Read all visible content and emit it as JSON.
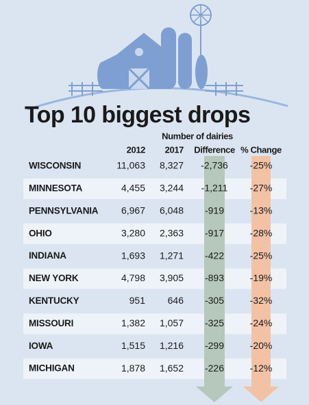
{
  "title": "Top 10 biggest drops",
  "table": {
    "group_header": "Number of dairies",
    "columns": [
      "2012",
      "2017",
      "Difference",
      "% Change"
    ],
    "rows": [
      [
        "WISCONSIN",
        "11,063",
        "8,327",
        "-2,736",
        "-25%"
      ],
      [
        "MINNESOTA",
        "4,455",
        "3,244",
        "-1,211",
        "-27%"
      ],
      [
        "PENNSYLVANIA",
        "6,967",
        "6,048",
        "-919",
        "-13%"
      ],
      [
        "OHIO",
        "3,280",
        "2,363",
        "-917",
        "-28%"
      ],
      [
        "INDIANA",
        "1,693",
        "1,271",
        "-422",
        "-25%"
      ],
      [
        "NEW YORK",
        "4,798",
        "3,905",
        "-893",
        "-19%"
      ],
      [
        "KENTUCKY",
        "951",
        "646",
        "-305",
        "-32%"
      ],
      [
        "MISSOURI",
        "1,382",
        "1,057",
        "-325",
        "-24%"
      ],
      [
        "IOWA",
        "1,515",
        "1,216",
        "-299",
        "-20%"
      ],
      [
        "MICHIGAN",
        "1,878",
        "1,652",
        "-226",
        "-12%"
      ]
    ]
  }
}
